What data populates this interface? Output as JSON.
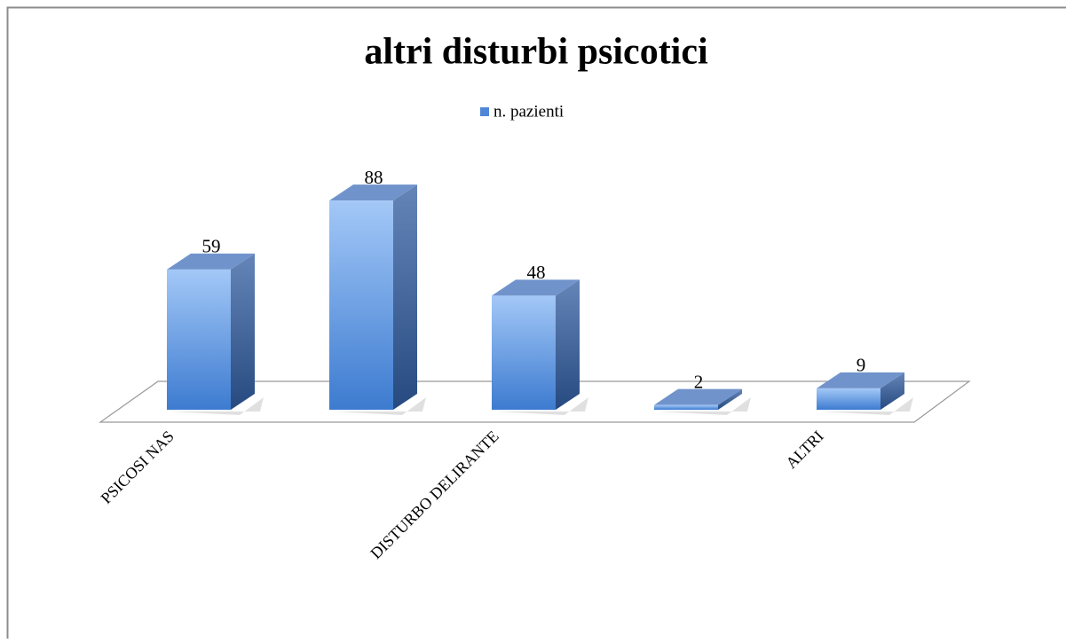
{
  "chart_data": {
    "type": "bar3d",
    "title": "altri disturbi psicotici",
    "categories": [
      "PSICOSI NAS",
      null,
      "DISTURBO DELIRANTE",
      null,
      "ALTRI"
    ],
    "series": [
      {
        "name": "n. pazienti",
        "color": "#4f86d6",
        "values": [
          59,
          88,
          48,
          2,
          9
        ]
      }
    ]
  }
}
